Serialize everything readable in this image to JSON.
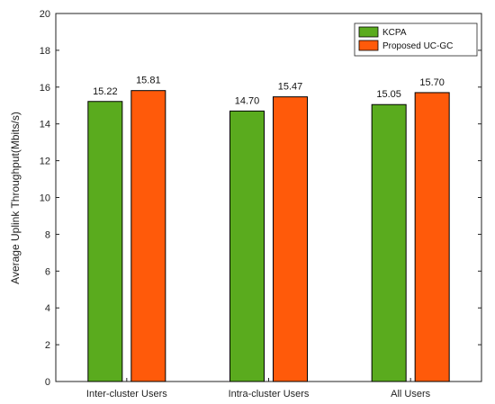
{
  "chart_data": {
    "type": "bar",
    "title": "",
    "xlabel": "",
    "ylabel": "Average Uplink Throughput(Mbits/s)",
    "categories": [
      "Inter-cluster Users",
      "Intra-cluster Users",
      "All Users"
    ],
    "series": [
      {
        "name": "KCPA",
        "values": [
          15.22,
          14.7,
          15.05
        ],
        "labels": [
          "15.22",
          "14.70",
          "15.05"
        ],
        "color": "#5aab1e"
      },
      {
        "name": "Proposed UC-GC",
        "values": [
          15.81,
          15.47,
          15.7
        ],
        "labels": [
          "15.81",
          "15.47",
          "15.70"
        ],
        "color": "#ff5a0a"
      }
    ],
    "ylim": [
      0,
      20
    ],
    "yticks": [
      0,
      2,
      4,
      6,
      8,
      10,
      12,
      14,
      16,
      18,
      20
    ],
    "grid": false,
    "legend_position": "top-right"
  }
}
